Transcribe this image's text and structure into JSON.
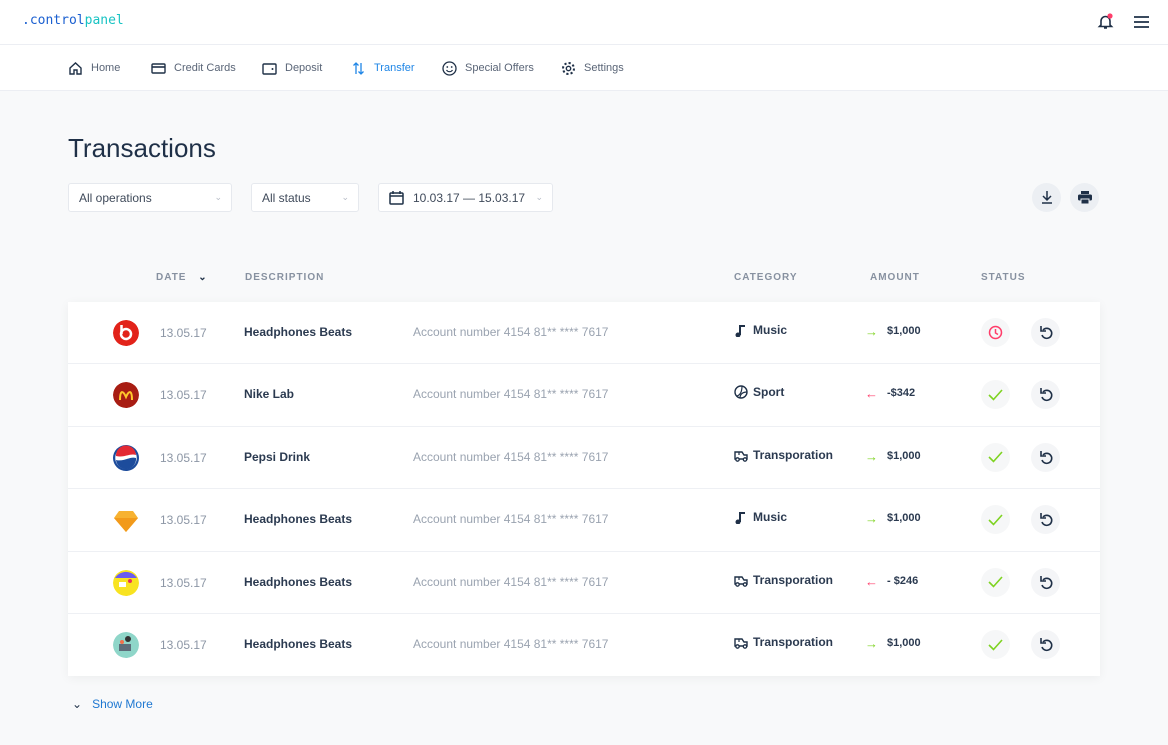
{
  "app": {
    "logo_part1": ".control",
    "logo_part2": "panel",
    "accent": "#1f86e6"
  },
  "nav": [
    {
      "label": "Home",
      "icon": "home-icon"
    },
    {
      "label": "Credit Cards",
      "icon": "credit-card-icon"
    },
    {
      "label": "Deposit",
      "icon": "wallet-icon"
    },
    {
      "label": "Transfer",
      "icon": "transfer-icon",
      "active": true
    },
    {
      "label": "Special Offers",
      "icon": "smile-icon"
    },
    {
      "label": "Settings",
      "icon": "gear-icon"
    }
  ],
  "page": {
    "title": "Transactions"
  },
  "filters": {
    "operations": "All operations",
    "status": "All status",
    "date_range": "10.03.17 — 15.03.17"
  },
  "table": {
    "headers": {
      "date": "DATE",
      "description": "DESCRIPTION",
      "category": "CATEGORY",
      "amount": "AMOUNT",
      "status": "STATUS"
    },
    "rows": [
      {
        "brand": "beats",
        "date": "13.05.17",
        "name": "Headphones Beats",
        "account": "Account number 4154 81** **** 7617",
        "category": "Music",
        "cat_icon": "music-icon",
        "direction": "in",
        "amount": "$1,000",
        "status": "pending"
      },
      {
        "brand": "mcdonalds",
        "date": "13.05.17",
        "name": "Nike Lab",
        "account": "Account number 4154 81** **** 7617",
        "category": "Sport",
        "cat_icon": "ball-icon",
        "direction": "out",
        "amount": "-$342",
        "status": "done"
      },
      {
        "brand": "pepsi",
        "date": "13.05.17",
        "name": "Pepsi Drink",
        "account": "Account number 4154 81** **** 7617",
        "category": "Transporation",
        "cat_icon": "car-icon",
        "direction": "in",
        "amount": "$1,000",
        "status": "done"
      },
      {
        "brand": "sketch",
        "date": "13.05.17",
        "name": "Headphones Beats",
        "account": "Account number 4154 81** **** 7617",
        "category": "Music",
        "cat_icon": "music-icon",
        "direction": "in",
        "amount": "$1,000",
        "status": "done"
      },
      {
        "brand": "box",
        "date": "13.05.17",
        "name": "Headphones Beats",
        "account": "Account number 4154 81** **** 7617",
        "category": "Transporation",
        "cat_icon": "car-icon",
        "direction": "out",
        "amount": "- $246",
        "status": "done"
      },
      {
        "brand": "illustration",
        "date": "13.05.17",
        "name": "Headphones Beats",
        "account": "Account number 4154 81** **** 7617",
        "category": "Transporation",
        "cat_icon": "car-icon",
        "direction": "in",
        "amount": "$1,000",
        "status": "done"
      }
    ]
  },
  "show_more": "Show More",
  "colors": {
    "in": "#7ed321",
    "out": "#ff3d6a",
    "pending": "#ff3d6a",
    "done": "#7ed321"
  }
}
